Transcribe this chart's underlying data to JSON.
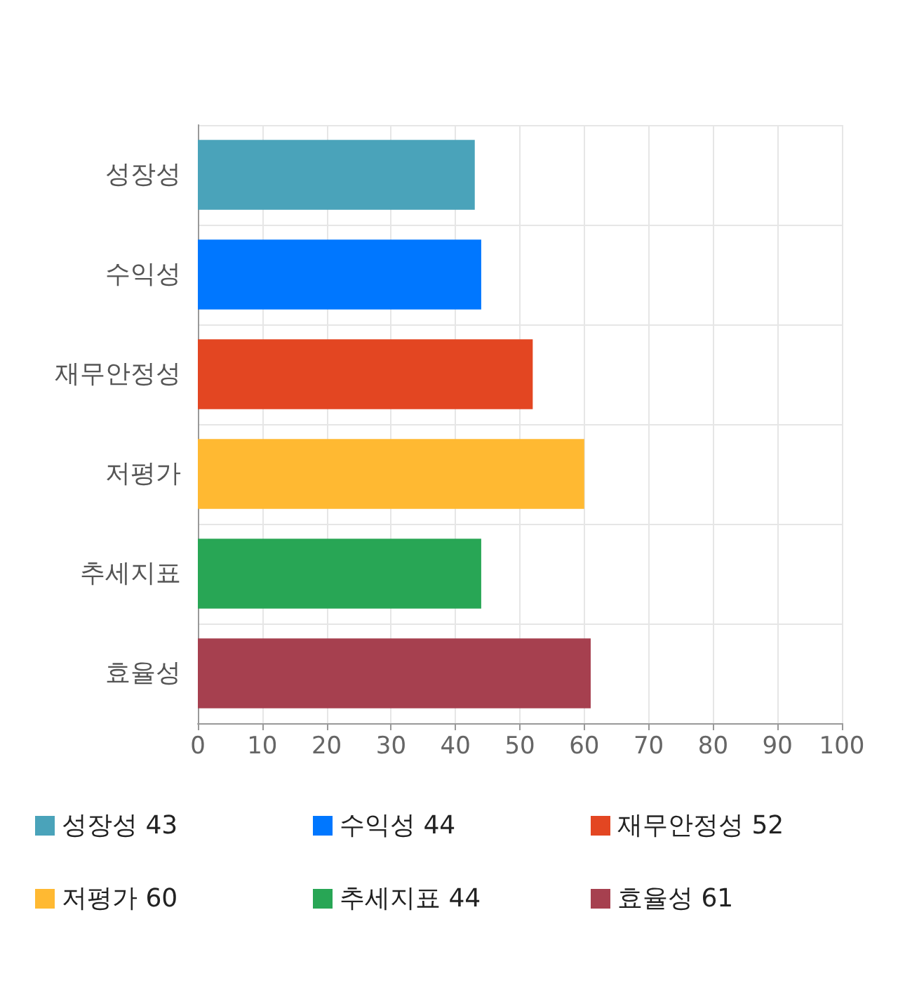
{
  "chart_data": {
    "type": "bar",
    "orientation": "horizontal",
    "categories": [
      "성장성",
      "수익성",
      "재무안정성",
      "저평가",
      "추세지표",
      "효율성"
    ],
    "series": [
      {
        "name": "성장성 43",
        "color": "#4aa3ba",
        "values": [
          43,
          null,
          null,
          null,
          null,
          null
        ]
      },
      {
        "name": "수익성 44",
        "color": "#0077ff",
        "values": [
          null,
          44,
          null,
          null,
          null,
          null
        ]
      },
      {
        "name": "재무안정성 52",
        "color": "#e34622",
        "values": [
          null,
          null,
          52,
          null,
          null,
          null
        ]
      },
      {
        "name": "저평가 60",
        "color": "#ffb932",
        "values": [
          null,
          null,
          null,
          60,
          null,
          null
        ]
      },
      {
        "name": "추세지표 44",
        "color": "#28a655",
        "values": [
          null,
          null,
          null,
          null,
          44,
          null
        ]
      },
      {
        "name": "효율성 61",
        "color": "#a6404f",
        "values": [
          null,
          null,
          null,
          null,
          null,
          61
        ]
      }
    ],
    "xlim": [
      0,
      100
    ],
    "xticks": [
      0,
      10,
      20,
      30,
      40,
      50,
      60,
      70,
      80,
      90,
      100
    ],
    "grid": true,
    "legend": "bottom"
  }
}
